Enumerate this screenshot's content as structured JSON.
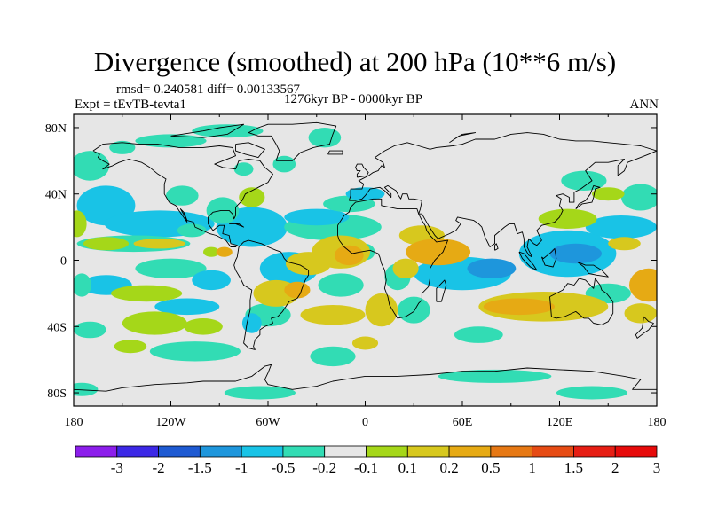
{
  "title": "Divergence (smoothed) at 200 hPa (10**6 m/s)",
  "stats": "rmsd= 0.240581 diff= 0.00133567",
  "experiment": "Expt = tEvTB-tevta1",
  "period": "1276kyr BP - 0000kyr BP",
  "season": "ANN",
  "map": {
    "projection": "cylindrical equidistant",
    "lon_ticks": [
      "180",
      "120W",
      "60W",
      "0",
      "60E",
      "120E",
      "180"
    ],
    "lat_ticks": [
      "80N",
      "40N",
      "0",
      "40S",
      "80S"
    ],
    "background_color": "#e6e6e6",
    "coast_color": "#000000"
  },
  "colorbar": {
    "colors": [
      "#8c1eeb",
      "#3c28e6",
      "#1e5ad2",
      "#1e96dc",
      "#19c3e6",
      "#32dcb4",
      "#e6e6e6",
      "#a5d719",
      "#d7c81e",
      "#e6aa14",
      "#e67814",
      "#e64b14",
      "#e61e14",
      "#e60a0a"
    ],
    "labels": [
      "-3",
      "-2",
      "-1.5",
      "-1",
      "-0.5",
      "-0.2",
      "-0.1",
      "0.1",
      "0.2",
      "0.5",
      "1",
      "1.5",
      "2",
      "3"
    ]
  },
  "field_patches": [
    {
      "lon": -170,
      "lat": 57,
      "rx": 12,
      "ry": 9,
      "level": "-0.2"
    },
    {
      "lon": -150,
      "lat": 68,
      "rx": 8,
      "ry": 4,
      "level": "-0.2"
    },
    {
      "lon": -120,
      "lat": 72,
      "rx": 22,
      "ry": 4,
      "level": "-0.2"
    },
    {
      "lon": -85,
      "lat": 78,
      "rx": 22,
      "ry": 4,
      "level": "-0.2"
    },
    {
      "lon": -25,
      "lat": 74,
      "rx": 10,
      "ry": 6,
      "level": "-0.2"
    },
    {
      "lon": -50,
      "lat": 58,
      "rx": 7,
      "ry": 5,
      "level": "-0.2"
    },
    {
      "lon": -75,
      "lat": 55,
      "rx": 6,
      "ry": 4,
      "level": "-0.2"
    },
    {
      "lon": -160,
      "lat": 33,
      "rx": 18,
      "ry": 12,
      "level": "-0.5"
    },
    {
      "lon": -127,
      "lat": 22,
      "rx": 34,
      "ry": 8,
      "level": "-0.5"
    },
    {
      "lon": -113,
      "lat": 39,
      "rx": 10,
      "ry": 6,
      "level": "-0.2"
    },
    {
      "lon": -143,
      "lat": 10,
      "rx": 35,
      "ry": 5,
      "level": "-0.2"
    },
    {
      "lon": -160,
      "lat": 10,
      "rx": 14,
      "ry": 4,
      "level": "0.1"
    },
    {
      "lon": -127,
      "lat": 10,
      "rx": 16,
      "ry": 3,
      "level": "0.2"
    },
    {
      "lon": -107,
      "lat": 18,
      "rx": 9,
      "ry": 4,
      "level": "-0.2"
    },
    {
      "lon": -70,
      "lat": 20,
      "rx": 22,
      "ry": 12,
      "level": "-0.5"
    },
    {
      "lon": -88,
      "lat": 30,
      "rx": 10,
      "ry": 8,
      "level": "-0.2"
    },
    {
      "lon": -47,
      "lat": -5,
      "rx": 18,
      "ry": 10,
      "level": "-0.5"
    },
    {
      "lon": -20,
      "lat": 20,
      "rx": 30,
      "ry": 8,
      "level": "-0.2"
    },
    {
      "lon": -30,
      "lat": 26,
      "rx": 20,
      "ry": 5,
      "level": "-0.5"
    },
    {
      "lon": -10,
      "lat": 34,
      "rx": 16,
      "ry": 5,
      "level": "-0.2"
    },
    {
      "lon": 0,
      "lat": 40,
      "rx": 12,
      "ry": 4,
      "level": "-0.5"
    },
    {
      "lon": -120,
      "lat": -5,
      "rx": 22,
      "ry": 6,
      "level": "-0.2"
    },
    {
      "lon": -160,
      "lat": -15,
      "rx": 16,
      "ry": 6,
      "level": "-0.5"
    },
    {
      "lon": -95,
      "lat": -12,
      "rx": 12,
      "ry": 6,
      "level": "-0.5"
    },
    {
      "lon": -175,
      "lat": -15,
      "rx": 6,
      "ry": 7,
      "level": "-0.2"
    },
    {
      "lon": -15,
      "lat": -15,
      "rx": 14,
      "ry": 7,
      "level": "-0.2"
    },
    {
      "lon": 0,
      "lat": 5,
      "rx": 6,
      "ry": 5,
      "level": "-0.2"
    },
    {
      "lon": 20,
      "lat": -10,
      "rx": 8,
      "ry": 8,
      "level": "-0.2"
    },
    {
      "lon": 60,
      "lat": -8,
      "rx": 30,
      "ry": 10,
      "level": "-0.5"
    },
    {
      "lon": 78,
      "lat": -5,
      "rx": 15,
      "ry": 6,
      "level": "-1"
    },
    {
      "lon": 125,
      "lat": 4,
      "rx": 30,
      "ry": 14,
      "level": "-0.5"
    },
    {
      "lon": 130,
      "lat": 4,
      "rx": 16,
      "ry": 6,
      "level": "-1"
    },
    {
      "lon": 158,
      "lat": 20,
      "rx": 22,
      "ry": 7,
      "level": "-0.5"
    },
    {
      "lon": 135,
      "lat": 48,
      "rx": 14,
      "ry": 6,
      "level": "-0.2"
    },
    {
      "lon": 170,
      "lat": 38,
      "rx": 12,
      "ry": 8,
      "level": "-0.2"
    },
    {
      "lon": 150,
      "lat": -20,
      "rx": 14,
      "ry": 6,
      "level": "-0.2"
    },
    {
      "lon": -110,
      "lat": -28,
      "rx": 20,
      "ry": 5,
      "level": "-0.5"
    },
    {
      "lon": -60,
      "lat": -33,
      "rx": 14,
      "ry": 7,
      "level": "-0.2"
    },
    {
      "lon": 30,
      "lat": -30,
      "rx": 10,
      "ry": 8,
      "level": "-0.2"
    },
    {
      "lon": 70,
      "lat": -45,
      "rx": 15,
      "ry": 5,
      "level": "-0.2"
    },
    {
      "lon": -170,
      "lat": -42,
      "rx": 10,
      "ry": 5,
      "level": "-0.2"
    },
    {
      "lon": -105,
      "lat": -55,
      "rx": 28,
      "ry": 6,
      "level": "-0.2"
    },
    {
      "lon": -20,
      "lat": -58,
      "rx": 14,
      "ry": 6,
      "level": "-0.2"
    },
    {
      "lon": -70,
      "lat": -38,
      "rx": 6,
      "ry": 6,
      "level": "-0.5"
    },
    {
      "lon": -65,
      "lat": -80,
      "rx": 22,
      "ry": 4,
      "level": "-0.2"
    },
    {
      "lon": 80,
      "lat": -70,
      "rx": 35,
      "ry": 4,
      "level": "-0.2"
    },
    {
      "lon": 140,
      "lat": -80,
      "rx": 22,
      "ry": 4,
      "level": "-0.2"
    },
    {
      "lon": -175,
      "lat": -78,
      "rx": 10,
      "ry": 4,
      "level": "-0.2"
    },
    {
      "lon": -178,
      "lat": 22,
      "rx": 6,
      "ry": 8,
      "level": "0.1"
    },
    {
      "lon": -70,
      "lat": 38,
      "rx": 8,
      "ry": 6,
      "level": "0.1"
    },
    {
      "lon": -95,
      "lat": 5,
      "rx": 5,
      "ry": 3,
      "level": "0.1"
    },
    {
      "lon": -87,
      "lat": 5,
      "rx": 5,
      "ry": 3,
      "level": "0.5"
    },
    {
      "lon": -35,
      "lat": -2,
      "rx": 14,
      "ry": 7,
      "level": "0.2"
    },
    {
      "lon": -15,
      "lat": 5,
      "rx": 18,
      "ry": 10,
      "level": "0.2"
    },
    {
      "lon": -10,
      "lat": 3,
      "rx": 9,
      "ry": 6,
      "level": "0.5"
    },
    {
      "lon": -55,
      "lat": -20,
      "rx": 14,
      "ry": 8,
      "level": "0.2"
    },
    {
      "lon": -42,
      "lat": -18,
      "rx": 8,
      "ry": 5,
      "level": "0.5"
    },
    {
      "lon": -135,
      "lat": -20,
      "rx": 22,
      "ry": 5,
      "level": "0.1"
    },
    {
      "lon": -130,
      "lat": -38,
      "rx": 20,
      "ry": 7,
      "level": "0.1"
    },
    {
      "lon": -100,
      "lat": -40,
      "rx": 12,
      "ry": 5,
      "level": "0.1"
    },
    {
      "lon": -20,
      "lat": -33,
      "rx": 20,
      "ry": 6,
      "level": "0.2"
    },
    {
      "lon": 10,
      "lat": -30,
      "rx": 10,
      "ry": 10,
      "level": "0.2"
    },
    {
      "lon": 35,
      "lat": 15,
      "rx": 14,
      "ry": 6,
      "level": "0.2"
    },
    {
      "lon": 45,
      "lat": 5,
      "rx": 20,
      "ry": 8,
      "level": "0.5"
    },
    {
      "lon": 25,
      "lat": -5,
      "rx": 8,
      "ry": 6,
      "level": "0.2"
    },
    {
      "lon": 110,
      "lat": -28,
      "rx": 40,
      "ry": 9,
      "level": "0.2"
    },
    {
      "lon": 95,
      "lat": -28,
      "rx": 22,
      "ry": 5,
      "level": "0.5"
    },
    {
      "lon": 175,
      "lat": -15,
      "rx": 12,
      "ry": 10,
      "level": "0.5"
    },
    {
      "lon": 125,
      "lat": 25,
      "rx": 18,
      "ry": 6,
      "level": "0.1"
    },
    {
      "lon": 150,
      "lat": 40,
      "rx": 10,
      "ry": 4,
      "level": "0.1"
    },
    {
      "lon": 160,
      "lat": 10,
      "rx": 10,
      "ry": 4,
      "level": "0.2"
    },
    {
      "lon": 170,
      "lat": -32,
      "rx": 10,
      "ry": 6,
      "level": "0.2"
    },
    {
      "lon": -145,
      "lat": -52,
      "rx": 10,
      "ry": 4,
      "level": "0.1"
    },
    {
      "lon": 0,
      "lat": -50,
      "rx": 8,
      "ry": 4,
      "level": "0.2"
    }
  ]
}
